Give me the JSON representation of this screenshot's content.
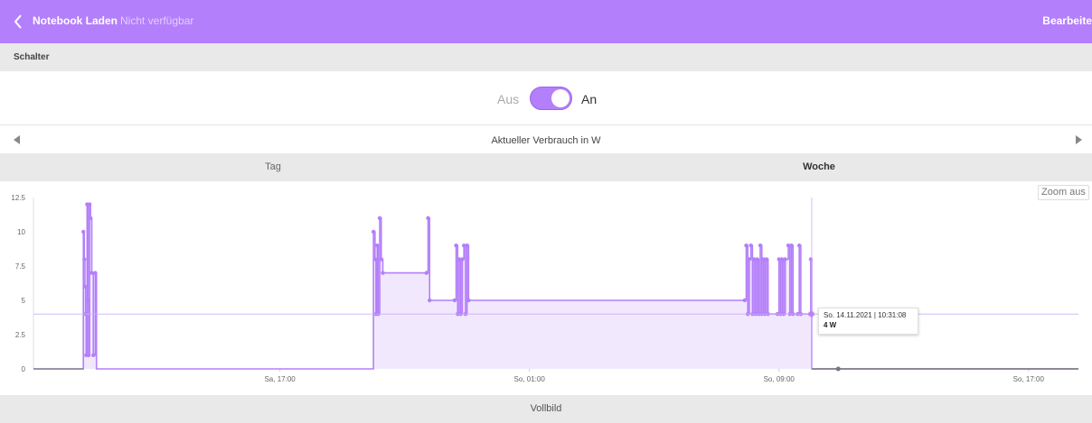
{
  "header": {
    "title": "Notebook Laden",
    "status": "Nicht verfügbar",
    "edit_label": "Bearbeite",
    "back_icon": "chevron-left-icon",
    "color": "#b47ffa"
  },
  "section": {
    "title": "Schalter"
  },
  "switch": {
    "off_label": "Aus",
    "on_label": "An",
    "state": "on"
  },
  "chart_nav": {
    "title": "Aktueller Verbrauch in W",
    "prev_icon": "triangle-left-icon",
    "next_icon": "triangle-right-icon"
  },
  "tabs": [
    {
      "label": "Tag",
      "active": false
    },
    {
      "label": "Woche",
      "active": true
    }
  ],
  "zoom_label": "Zoom aus",
  "tooltip": {
    "time": "So. 14.11.2021 | 10:31:08",
    "value": "4 W"
  },
  "footer": {
    "fullscreen_label": "Vollbild"
  },
  "chart_data": {
    "type": "area",
    "step": true,
    "title": "",
    "xlabel": "",
    "ylabel": "",
    "x_ticks": [
      {
        "label": "Sa, 17:00",
        "hours": 17
      },
      {
        "label": "So, 01:00",
        "hours": 25
      },
      {
        "label": "So, 09:00",
        "hours": 33
      },
      {
        "label": "So, 17:00",
        "hours": 41
      }
    ],
    "xlim_hours": [
      9.1,
      42.6
    ],
    "y_ticks": [
      "0",
      "2.5",
      "5",
      "7.5",
      "10",
      "12.5"
    ],
    "ylim": [
      0,
      12.5
    ],
    "grid": false,
    "colors": {
      "line": "#b47ffa",
      "fill": "#f1e8fe",
      "crosshair": "#c9b0f6",
      "baseline": "#777777"
    },
    "series": [
      {
        "points": [
          [
            9.1,
            0
          ],
          [
            10.7,
            0
          ],
          [
            10.7,
            10
          ],
          [
            10.73,
            8
          ],
          [
            10.75,
            6
          ],
          [
            10.77,
            4
          ],
          [
            10.79,
            1
          ],
          [
            10.82,
            12
          ],
          [
            10.85,
            5
          ],
          [
            10.87,
            1
          ],
          [
            10.9,
            12
          ],
          [
            10.93,
            11
          ],
          [
            10.97,
            7
          ],
          [
            11.02,
            1
          ],
          [
            11.08,
            7
          ],
          [
            11.12,
            0
          ],
          [
            20.0,
            0
          ],
          [
            20.0,
            10
          ],
          [
            20.05,
            8
          ],
          [
            20.08,
            4
          ],
          [
            20.12,
            9
          ],
          [
            20.15,
            4
          ],
          [
            20.2,
            11
          ],
          [
            20.25,
            8
          ],
          [
            20.3,
            7
          ],
          [
            21.7,
            7
          ],
          [
            21.75,
            11
          ],
          [
            21.8,
            5
          ],
          [
            22.6,
            5
          ],
          [
            22.65,
            9
          ],
          [
            22.7,
            4
          ],
          [
            22.75,
            8
          ],
          [
            22.8,
            4
          ],
          [
            22.85,
            8
          ],
          [
            22.9,
            9
          ],
          [
            22.95,
            4
          ],
          [
            23.0,
            9
          ],
          [
            23.05,
            5
          ],
          [
            31.9,
            5
          ],
          [
            31.95,
            9
          ],
          [
            32.0,
            4
          ],
          [
            32.05,
            8
          ],
          [
            32.1,
            9
          ],
          [
            32.15,
            4
          ],
          [
            32.2,
            8
          ],
          [
            32.25,
            4
          ],
          [
            32.3,
            8
          ],
          [
            32.35,
            4
          ],
          [
            32.4,
            9
          ],
          [
            32.45,
            4
          ],
          [
            32.5,
            8
          ],
          [
            32.55,
            4
          ],
          [
            32.6,
            8
          ],
          [
            32.65,
            4
          ],
          [
            32.95,
            4
          ],
          [
            33.0,
            8
          ],
          [
            33.05,
            4
          ],
          [
            33.1,
            8
          ],
          [
            33.15,
            4
          ],
          [
            33.2,
            8
          ],
          [
            33.3,
            9
          ],
          [
            33.35,
            4
          ],
          [
            33.4,
            9
          ],
          [
            33.45,
            4
          ],
          [
            33.6,
            4
          ],
          [
            33.65,
            9
          ],
          [
            33.7,
            4
          ],
          [
            34.0,
            4
          ],
          [
            34.02,
            8
          ],
          [
            34.05,
            0
          ],
          [
            42.6,
            0
          ]
        ]
      }
    ],
    "reference_value": 4,
    "hover_x_hours": 34.05,
    "hover_marker": {
      "x_hours": 34.05,
      "y": 4
    },
    "end_marker": {
      "x_hours": 34.9,
      "y": 0
    }
  }
}
